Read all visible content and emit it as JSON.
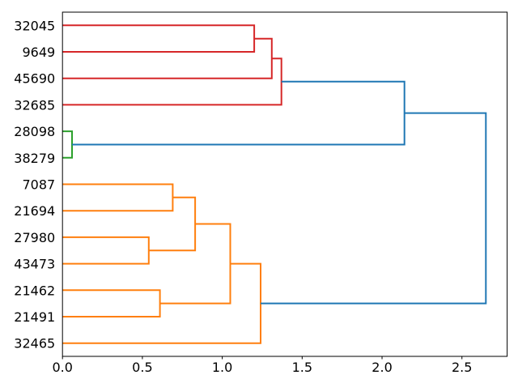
{
  "figure": {
    "background": "#ffffff",
    "axis_color": "#000000",
    "text_color": "#000000"
  },
  "chart_data": {
    "type": "dendrogram",
    "orientation": "right",
    "title": "",
    "grid": false,
    "leaves": [
      "32045",
      "9649",
      "45690",
      "32685",
      "28098",
      "38279",
      "7087",
      "21694",
      "27980",
      "43473",
      "21462",
      "21491",
      "32465"
    ],
    "merges": [
      {
        "id": "M0",
        "children": [
          "L0",
          "L1"
        ],
        "distance": 1.2,
        "color_key": "red"
      },
      {
        "id": "M1",
        "children": [
          "M0",
          "L2"
        ],
        "distance": 1.31,
        "color_key": "red"
      },
      {
        "id": "M2",
        "children": [
          "M1",
          "L3"
        ],
        "distance": 1.37,
        "color_key": "red"
      },
      {
        "id": "M3",
        "children": [
          "L4",
          "L5"
        ],
        "distance": 0.06,
        "color_key": "green"
      },
      {
        "id": "M4",
        "children": [
          "L6",
          "L7"
        ],
        "distance": 0.69,
        "color_key": "orange"
      },
      {
        "id": "M5",
        "children": [
          "L8",
          "L9"
        ],
        "distance": 0.54,
        "color_key": "orange"
      },
      {
        "id": "M6",
        "children": [
          "M4",
          "M5"
        ],
        "distance": 0.83,
        "color_key": "orange"
      },
      {
        "id": "M7",
        "children": [
          "L10",
          "L11"
        ],
        "distance": 0.61,
        "color_key": "orange"
      },
      {
        "id": "M8",
        "children": [
          "M6",
          "M7"
        ],
        "distance": 1.05,
        "color_key": "orange"
      },
      {
        "id": "M9",
        "children": [
          "M8",
          "L12"
        ],
        "distance": 1.24,
        "color_key": "orange"
      },
      {
        "id": "M10",
        "children": [
          "M2",
          "M3"
        ],
        "distance": 2.14,
        "color_key": "blue"
      },
      {
        "id": "M11",
        "children": [
          "M10",
          "M9"
        ],
        "distance": 2.65,
        "color_key": "blue"
      }
    ],
    "colors": {
      "red": "#d62728",
      "green": "#2ca02c",
      "orange": "#ff7f0e",
      "blue": "#1f77b4"
    },
    "x_ticks": [
      {
        "value": 0.0,
        "label": "0.0"
      },
      {
        "value": 0.5,
        "label": "0.5"
      },
      {
        "value": 1.0,
        "label": "1.0"
      },
      {
        "value": 1.5,
        "label": "1.5"
      },
      {
        "value": 2.0,
        "label": "2.0"
      },
      {
        "value": 2.5,
        "label": "2.5"
      }
    ],
    "xlim": [
      0,
      2.783
    ],
    "ylim_units": 130,
    "leaf_start_unit": 5,
    "leaf_step_unit": 10
  }
}
